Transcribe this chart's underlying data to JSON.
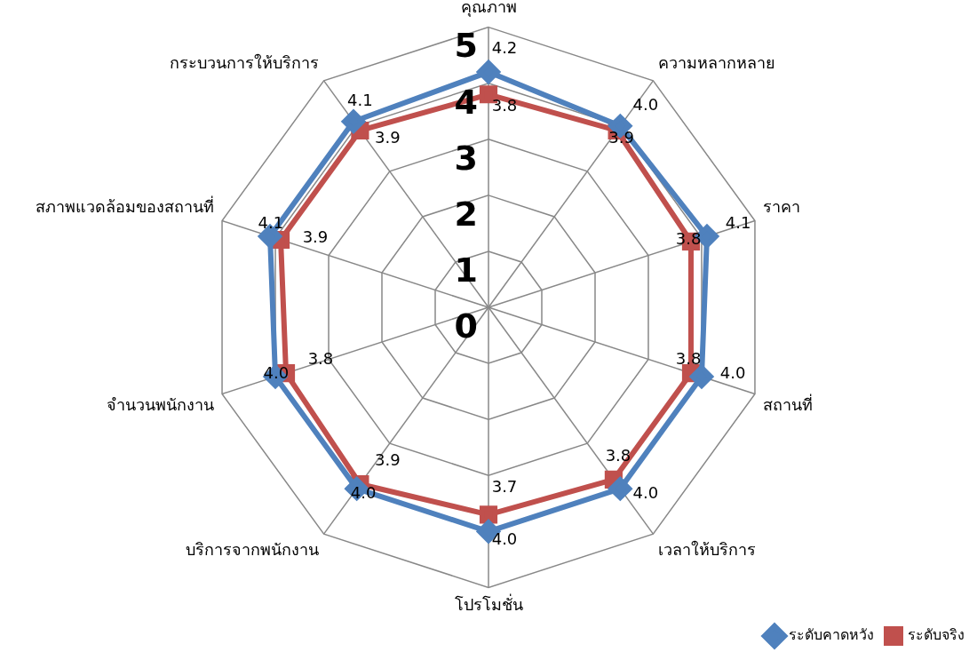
{
  "chart_data": {
    "type": "radar",
    "categories": [
      "คุณภาพ",
      "ความหลากหลาย",
      "ราคา",
      "สถานที่",
      "เวลาให้บริการ",
      "โปรโมชั่น",
      "บริการจากพนักงาน",
      "จำนวนพนักงาน",
      "สภาพแวดล้อมของสถานที่",
      "กระบวนการให้บริการ"
    ],
    "series": [
      {
        "name": "ระดับคาดหวัง",
        "color": "#4f81bd",
        "marker": "diamond",
        "values": [
          4.2,
          4.0,
          4.1,
          4.0,
          4.0,
          4.0,
          4.0,
          4.0,
          4.1,
          4.1
        ],
        "value_labels": [
          "4.2",
          "4.0",
          "4.1",
          "4.0",
          "4.0",
          "4.0",
          "4.0",
          "4.0",
          "4.1",
          "4.1"
        ]
      },
      {
        "name": "ระดับจริง",
        "color": "#c0504d",
        "marker": "square",
        "values": [
          3.8,
          3.9,
          3.8,
          3.8,
          3.8,
          3.7,
          3.9,
          3.8,
          3.9,
          3.9
        ],
        "value_labels": [
          "3.8",
          "3.9",
          "3.8",
          "3.8",
          "3.8",
          "3.7",
          "3.9",
          "3.8",
          "3.9",
          "3.9"
        ]
      }
    ],
    "ylim": [
      0,
      5
    ],
    "yticks": [
      0,
      1,
      2,
      3,
      4,
      5
    ],
    "grid": true,
    "legend": "bottom right"
  }
}
